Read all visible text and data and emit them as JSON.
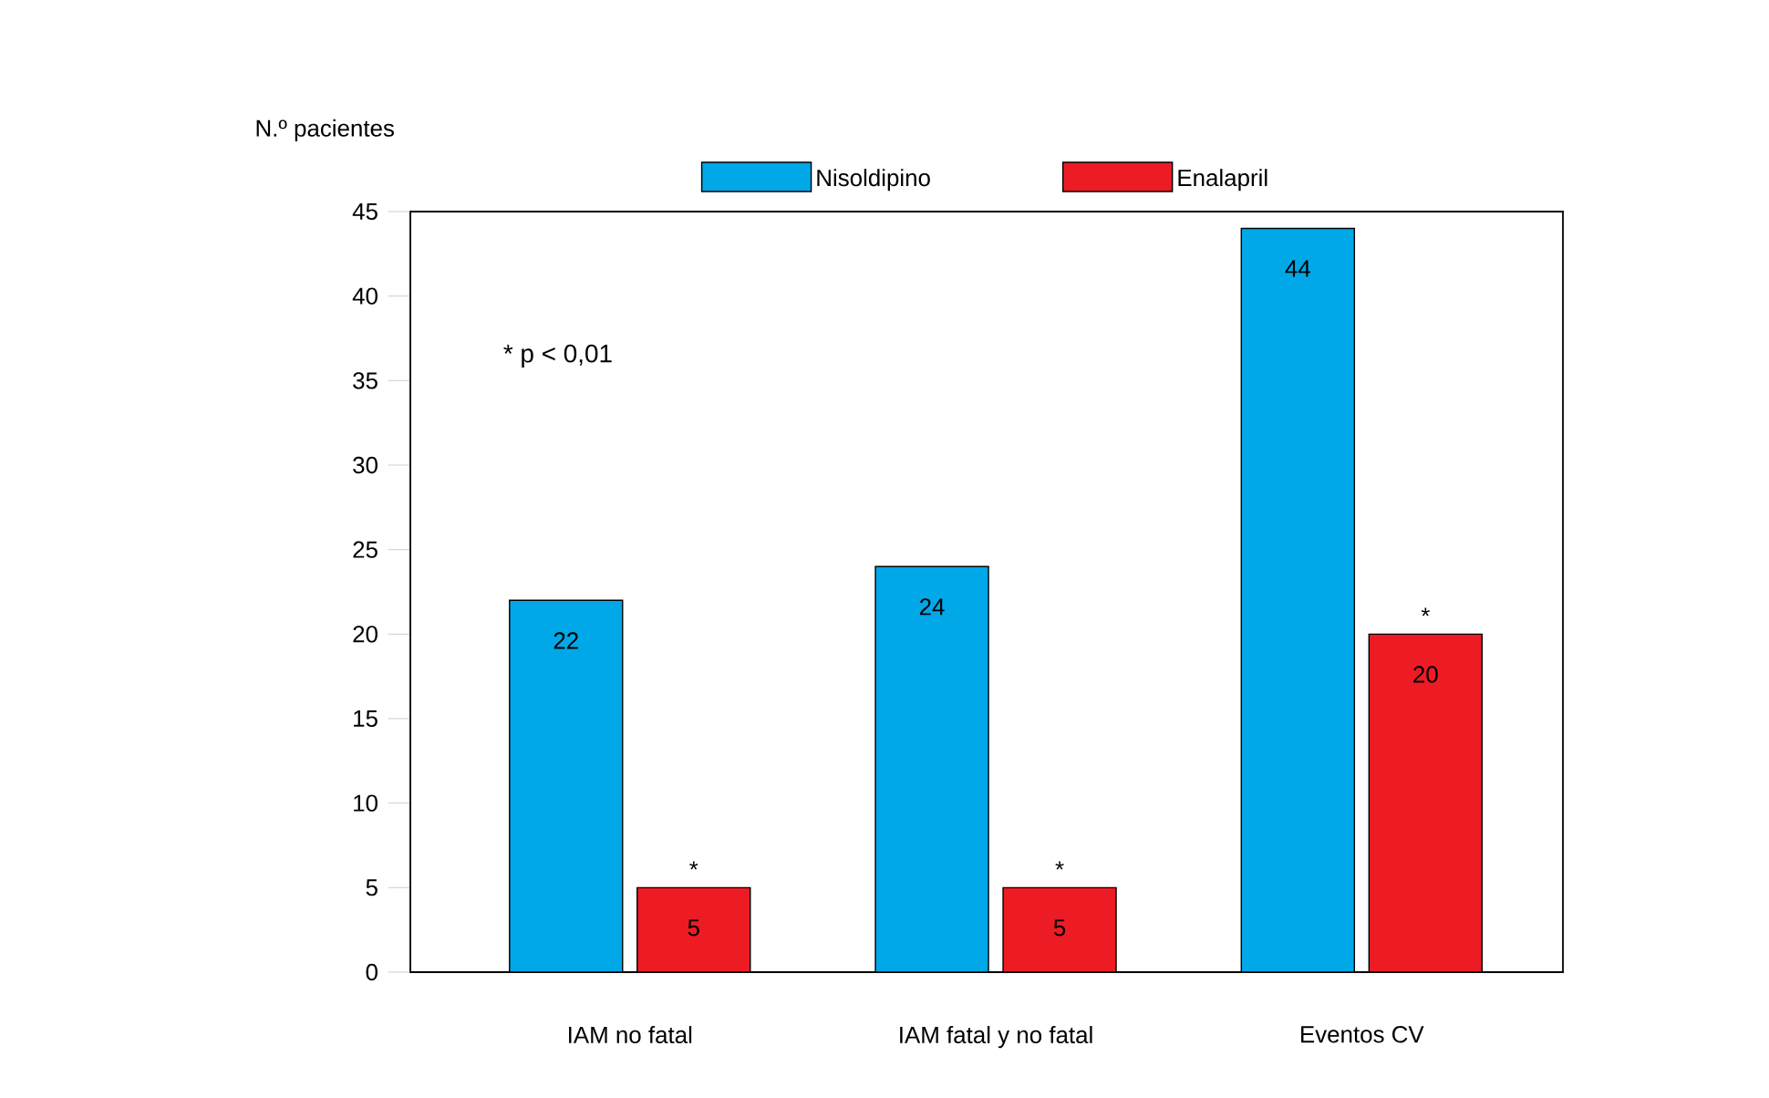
{
  "chart_data": {
    "type": "bar",
    "ylabel": "N.º pacientes",
    "categories": [
      "IAM no fatal",
      "IAM fatal y no fatal",
      "Eventos CV"
    ],
    "series": [
      {
        "name": "Nisoldipino",
        "color": "#00a8e8",
        "values": [
          22,
          24,
          44
        ]
      },
      {
        "name": "Enalapril",
        "color": "#ed1c24",
        "values": [
          5,
          5,
          20
        ]
      }
    ],
    "ylim": [
      0,
      45
    ],
    "yticks": [
      0,
      5,
      10,
      15,
      20,
      25,
      30,
      35,
      40,
      45
    ],
    "data_labels": true,
    "legend": "top",
    "grid": false,
    "annotations": [
      "* p < 0,01",
      {
        "text": "*",
        "x": "IAM no fatal",
        "y": 5
      },
      {
        "text": "*",
        "x": "IAM fatal y no fatal",
        "y": 5
      },
      {
        "text": "*",
        "x": "Eventos CV",
        "y": 20
      }
    ]
  }
}
